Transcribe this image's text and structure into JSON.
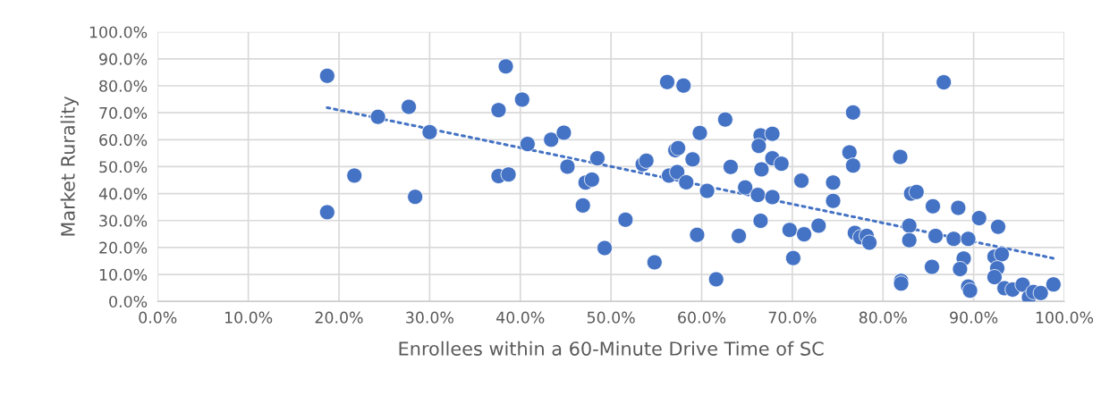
{
  "chart_data": {
    "type": "scatter",
    "xlabel": "Enrollees within a 60-Minute Drive Time of SC",
    "ylabel": "Market Rurality",
    "xlim": [
      0,
      100
    ],
    "ylim": [
      0,
      100
    ],
    "xticks": [
      {
        "value": 0,
        "label": "0.0%"
      },
      {
        "value": 10,
        "label": "10.0%"
      },
      {
        "value": 20,
        "label": "20.0%"
      },
      {
        "value": 30,
        "label": "30.0%"
      },
      {
        "value": 40,
        "label": "40.0%"
      },
      {
        "value": 50,
        "label": "50.0%"
      },
      {
        "value": 60,
        "label": "60.0%"
      },
      {
        "value": 70,
        "label": "70.0%"
      },
      {
        "value": 80,
        "label": "80.0%"
      },
      {
        "value": 90,
        "label": "90.0%"
      },
      {
        "value": 100,
        "label": "100.0%"
      }
    ],
    "yticks": [
      {
        "value": 0,
        "label": "0.0%"
      },
      {
        "value": 10,
        "label": "10.0%"
      },
      {
        "value": 20,
        "label": "20.0%"
      },
      {
        "value": 30,
        "label": "30.0%"
      },
      {
        "value": 40,
        "label": "40.0%"
      },
      {
        "value": 50,
        "label": "50.0%"
      },
      {
        "value": 60,
        "label": "60.0%"
      },
      {
        "value": 70,
        "label": "70.0%"
      },
      {
        "value": 80,
        "label": "80.0%"
      },
      {
        "value": 90,
        "label": "90.0%"
      },
      {
        "value": 100,
        "label": "100.0%"
      }
    ],
    "grid": true,
    "series": [
      {
        "marker": "circle",
        "color": "#4472c4",
        "x": [
          18.7,
          18.7,
          21.7,
          24.3,
          27.7,
          28.4,
          30.0,
          38.4,
          37.6,
          40.2,
          37.6,
          38.7,
          40.8,
          43.4,
          44.8,
          45.2,
          46.9,
          47.2,
          47.9,
          48.5,
          49.3,
          51.6,
          53.5,
          53.9,
          54.8,
          56.2,
          58.0,
          57.1,
          57.4,
          56.4,
          57.3,
          58.3,
          59.0,
          59.8,
          59.5,
          60.6,
          61.6,
          62.6,
          63.2,
          64.1,
          64.8,
          66.2,
          66.5,
          66.5,
          66.3,
          67.8,
          66.6,
          67.8,
          68.8,
          67.8,
          69.7,
          70.1,
          71.0,
          71.3,
          72.9,
          74.5,
          74.5,
          76.7,
          76.3,
          76.7,
          76.9,
          77.5,
          78.2,
          78.5,
          81.9,
          82.0,
          82.0,
          83.1,
          83.7,
          82.9,
          82.9,
          85.5,
          85.8,
          85.4,
          88.3,
          87.8,
          89.4,
          88.9,
          88.5,
          89.4,
          89.6,
          90.6,
          86.7,
          92.7,
          92.3,
          93.1,
          92.6,
          92.3,
          93.4,
          94.3,
          95.4,
          96.1,
          96.6,
          97.4,
          98.8
        ],
        "values": [
          83.7,
          33.1,
          46.7,
          68.5,
          72.2,
          38.8,
          62.8,
          87.2,
          71.0,
          74.9,
          46.5,
          47.1,
          58.4,
          60.0,
          62.6,
          50.0,
          35.6,
          44.1,
          45.2,
          53.1,
          19.8,
          30.3,
          50.9,
          52.2,
          14.5,
          81.4,
          80.1,
          56.1,
          56.9,
          46.7,
          48.0,
          44.2,
          52.7,
          62.5,
          24.7,
          41.0,
          8.2,
          67.5,
          49.9,
          24.3,
          42.3,
          39.5,
          29.9,
          61.6,
          57.7,
          62.2,
          49.0,
          53.1,
          51.1,
          38.7,
          26.5,
          16.1,
          44.8,
          24.9,
          28.1,
          44.1,
          37.3,
          70.1,
          55.3,
          50.4,
          25.4,
          23.8,
          24.3,
          21.8,
          53.6,
          7.6,
          6.6,
          40.0,
          40.6,
          28.1,
          22.7,
          35.3,
          24.3,
          12.8,
          34.7,
          23.2,
          23.2,
          15.9,
          12.0,
          5.5,
          4.0,
          30.9,
          81.3,
          27.7,
          16.6,
          17.5,
          12.3,
          9.0,
          4.9,
          4.4,
          6.2,
          1.5,
          3.5,
          3.1,
          6.3
        ]
      },
      {
        "type": "line",
        "line_style": "dotted",
        "marker": "none",
        "color": "#4472c4",
        "x": [
          18.7,
          98.8
        ],
        "values": [
          71.9,
          16.0
        ]
      }
    ]
  }
}
